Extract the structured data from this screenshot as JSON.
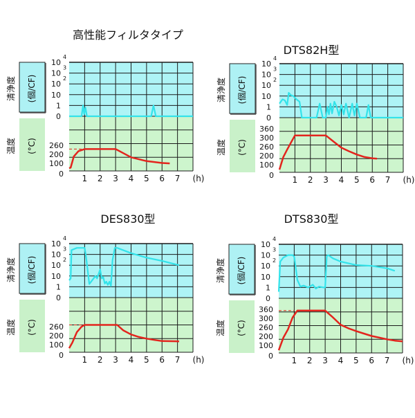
{
  "colors": {
    "clean_bg": "#aef4f6",
    "temp_bg": "#cdf5cd",
    "clean_line": "#33e3ea",
    "temp_line": "#e3241d",
    "grid": "#1a1a1a",
    "clean_box": "#aef1f4",
    "temp_box": "#c9f1c9"
  },
  "chart_data": [
    {
      "type": "line",
      "title": "高性能フィルタタイプ",
      "clean_label": "清浄度",
      "clean_unit": "(個/CF)",
      "temp_label": "温度",
      "temp_unit": "(°C)",
      "x_ticks": [
        "1",
        "2",
        "3",
        "4",
        "5",
        "6",
        "7"
      ],
      "x_unit": "(h)",
      "xlim": [
        0,
        8
      ],
      "clean_ticks": [
        {
          "base": "10",
          "exp": "4"
        },
        {
          "base": "10",
          "exp": "3"
        },
        {
          "base": "10",
          "exp": "2"
        },
        {
          "base": "10",
          "exp": ""
        },
        {
          "base": "1",
          "exp": ""
        },
        {
          "base": "0",
          "exp": ""
        }
      ],
      "temp_ticks": [
        "260",
        "200",
        "100",
        "0"
      ],
      "clean_series": [
        [
          0,
          0
        ],
        [
          0.8,
          0
        ],
        [
          0.9,
          1
        ],
        [
          0.97,
          0.2
        ],
        [
          1.05,
          0.8
        ],
        [
          1.15,
          0
        ],
        [
          5.3,
          0
        ],
        [
          5.45,
          1
        ],
        [
          5.6,
          0
        ],
        [
          8,
          0
        ]
      ],
      "temp_series": [
        [
          0,
          20
        ],
        [
          0.1,
          25
        ],
        [
          0.3,
          110
        ],
        [
          0.6,
          175
        ],
        [
          1,
          200
        ],
        [
          3,
          200
        ],
        [
          3.5,
          150
        ],
        [
          4,
          100
        ],
        [
          5,
          72
        ],
        [
          6,
          58
        ],
        [
          6.5,
          55
        ]
      ],
      "temp_setpoint": {
        "value": 200,
        "x": [
          0,
          0.8
        ]
      }
    },
    {
      "type": "line",
      "title": "DTS82H型",
      "clean_label": "清浄度",
      "clean_unit": "(個/CF)",
      "temp_label": "温度",
      "temp_unit": "(°C)",
      "x_ticks": [
        "1",
        "2",
        "3",
        "4",
        "5",
        "6",
        "7"
      ],
      "x_unit": "(h)",
      "xlim": [
        0,
        8
      ],
      "clean_ticks": [
        {
          "base": "10",
          "exp": "4"
        },
        {
          "base": "10",
          "exp": "3"
        },
        {
          "base": "10",
          "exp": "2"
        },
        {
          "base": "10",
          "exp": ""
        },
        {
          "base": "1",
          "exp": ""
        },
        {
          "base": "0",
          "exp": ""
        }
      ],
      "temp_ticks": [
        "360",
        "300",
        "260",
        "200",
        "100",
        "0"
      ],
      "clean_series": [
        [
          0,
          2
        ],
        [
          0.2,
          5
        ],
        [
          0.35,
          4
        ],
        [
          0.5,
          1.5
        ],
        [
          0.6,
          20
        ],
        [
          0.75,
          12
        ],
        [
          0.9,
          10
        ],
        [
          1.1,
          5
        ],
        [
          1.3,
          3
        ],
        [
          1.45,
          0
        ],
        [
          2.4,
          0
        ],
        [
          2.6,
          2
        ],
        [
          2.8,
          0
        ],
        [
          3.0,
          0
        ],
        [
          3.1,
          1
        ],
        [
          3.2,
          0.3
        ],
        [
          3.3,
          2
        ],
        [
          3.4,
          0.4
        ],
        [
          3.55,
          3
        ],
        [
          3.7,
          1
        ],
        [
          3.85,
          0.2
        ],
        [
          4.0,
          1.5
        ],
        [
          4.15,
          0.3
        ],
        [
          4.3,
          2
        ],
        [
          4.5,
          0
        ],
        [
          4.7,
          2
        ],
        [
          4.85,
          0.2
        ],
        [
          5.0,
          2
        ],
        [
          5.2,
          0
        ],
        [
          5.6,
          0
        ],
        [
          5.75,
          1.5
        ],
        [
          5.9,
          0
        ],
        [
          8,
          0
        ]
      ],
      "temp_series": [
        [
          0,
          20
        ],
        [
          0.25,
          120
        ],
        [
          0.5,
          210
        ],
        [
          0.75,
          275
        ],
        [
          1,
          320
        ],
        [
          3,
          320
        ],
        [
          3.5,
          280
        ],
        [
          4,
          230
        ],
        [
          4.5,
          190
        ],
        [
          5,
          150
        ],
        [
          5.5,
          120
        ],
        [
          6,
          105
        ],
        [
          6.3,
          100
        ]
      ]
    },
    {
      "type": "line",
      "title": "DES830型",
      "clean_label": "清浄度",
      "clean_unit": "(個/CF)",
      "temp_label": "温度",
      "temp_unit": "(°C)",
      "x_ticks": [
        "1",
        "2",
        "3",
        "4",
        "5",
        "6",
        "7"
      ],
      "x_unit": "(h)",
      "xlim": [
        0,
        8
      ],
      "clean_ticks": [
        {
          "base": "10",
          "exp": "4"
        },
        {
          "base": "10",
          "exp": "3"
        },
        {
          "base": "10",
          "exp": "2"
        },
        {
          "base": "10",
          "exp": ""
        },
        {
          "base": "1",
          "exp": ""
        },
        {
          "base": "0",
          "exp": ""
        }
      ],
      "temp_ticks": [
        "260",
        "200",
        "100",
        "0"
      ],
      "clean_series": [
        [
          0,
          4
        ],
        [
          0.1,
          6
        ],
        [
          0.15,
          2500
        ],
        [
          0.5,
          4000
        ],
        [
          1.0,
          4000
        ],
        [
          1.1,
          500
        ],
        [
          1.3,
          1.8
        ],
        [
          1.7,
          10
        ],
        [
          1.8,
          6
        ],
        [
          2.0,
          40
        ],
        [
          2.1,
          6
        ],
        [
          2.2,
          8
        ],
        [
          2.3,
          2
        ],
        [
          2.4,
          3
        ],
        [
          2.5,
          1.5
        ],
        [
          2.6,
          3
        ],
        [
          2.7,
          1.2
        ],
        [
          2.8,
          300
        ],
        [
          2.95,
          4000
        ],
        [
          3.1,
          4000
        ],
        [
          4,
          1300
        ],
        [
          5,
          500
        ],
        [
          6,
          250
        ],
        [
          7.1,
          100
        ]
      ],
      "temp_series": [
        [
          0,
          30
        ],
        [
          0.2,
          70
        ],
        [
          0.5,
          180
        ],
        [
          0.8,
          240
        ],
        [
          1,
          260
        ],
        [
          3.1,
          260
        ],
        [
          3.5,
          200
        ],
        [
          4,
          150
        ],
        [
          4.5,
          120
        ],
        [
          5,
          100
        ],
        [
          5.5,
          90
        ],
        [
          6,
          82
        ],
        [
          7.1,
          80
        ]
      ],
      "temp_setpoint": {
        "value": 260,
        "x": [
          0,
          0.8
        ]
      }
    },
    {
      "type": "line",
      "title": "DTS830型",
      "clean_label": "清浄度",
      "clean_unit": "(個/CF)",
      "temp_label": "温度",
      "temp_unit": "(°C)",
      "x_ticks": [
        "1",
        "2",
        "3",
        "4",
        "5",
        "6",
        "7"
      ],
      "x_unit": "(h)",
      "xlim": [
        0,
        8
      ],
      "clean_ticks": [
        {
          "base": "10",
          "exp": "4"
        },
        {
          "base": "10",
          "exp": "3"
        },
        {
          "base": "10",
          "exp": "2"
        },
        {
          "base": "10",
          "exp": ""
        },
        {
          "base": "1",
          "exp": ""
        },
        {
          "base": "0",
          "exp": ""
        }
      ],
      "temp_ticks": [
        "360",
        "300",
        "260",
        "200",
        "100",
        "0"
      ],
      "clean_series": [
        [
          0,
          0.6
        ],
        [
          0.1,
          250
        ],
        [
          0.3,
          600
        ],
        [
          0.6,
          1000
        ],
        [
          0.9,
          1000
        ],
        [
          1.0,
          700
        ],
        [
          1.2,
          5
        ],
        [
          1.4,
          1.2
        ],
        [
          1.6,
          1.5
        ],
        [
          1.9,
          1
        ],
        [
          2.2,
          1.8
        ],
        [
          2.4,
          0.9
        ],
        [
          2.6,
          1.2
        ],
        [
          2.9,
          1
        ],
        [
          3.0,
          1
        ],
        [
          3.1,
          800
        ],
        [
          3.2,
          1000
        ],
        [
          3.5,
          500
        ],
        [
          4,
          250
        ],
        [
          5,
          120
        ],
        [
          6,
          100
        ],
        [
          7,
          60
        ],
        [
          7.5,
          35
        ]
      ],
      "temp_series": [
        [
          0,
          20
        ],
        [
          0.3,
          120
        ],
        [
          0.6,
          220
        ],
        [
          0.9,
          310
        ],
        [
          1.2,
          360
        ],
        [
          3,
          360
        ],
        [
          3.5,
          310
        ],
        [
          4,
          265
        ],
        [
          4.5,
          230
        ],
        [
          5,
          200
        ],
        [
          5.5,
          170
        ],
        [
          6,
          140
        ],
        [
          6.5,
          120
        ],
        [
          7,
          100
        ],
        [
          7.5,
          90
        ],
        [
          8,
          85
        ]
      ],
      "temp_setpoint": {
        "value": 360,
        "x": [
          0,
          1
        ]
      }
    }
  ]
}
